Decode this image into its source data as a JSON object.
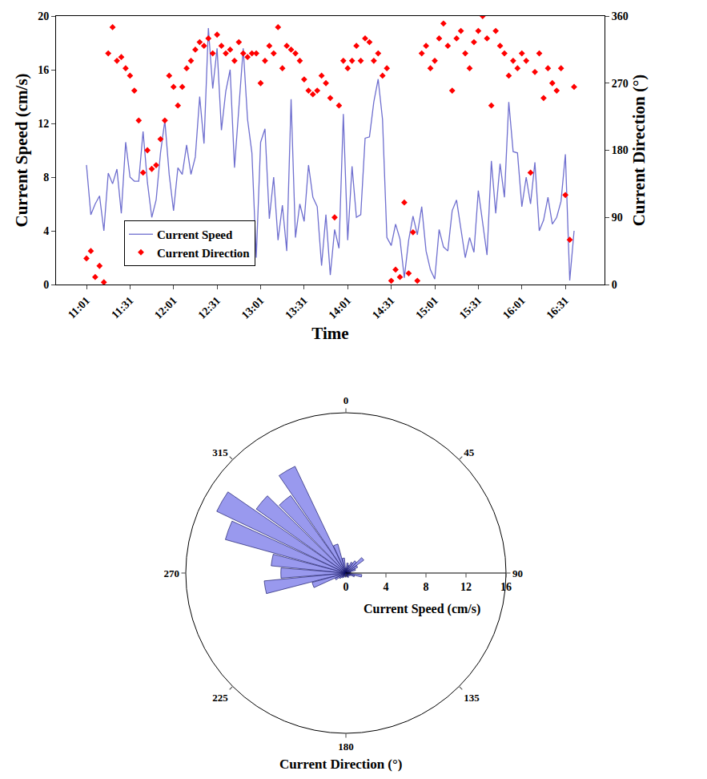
{
  "chart_data": [
    {
      "type": "line",
      "xlabel": "Time",
      "ylabel": "Current Speed (cm/s)",
      "y2label": "Current Direction (°)",
      "categories": [
        "11:01",
        null,
        null,
        null,
        null,
        null,
        null,
        null,
        null,
        null,
        "11:31",
        null,
        null,
        null,
        null,
        null,
        null,
        null,
        null,
        null,
        "12:01",
        null,
        null,
        null,
        null,
        null,
        null,
        null,
        null,
        null,
        "12:31",
        null,
        null,
        null,
        null,
        null,
        null,
        null,
        null,
        null,
        "13:01",
        null,
        null,
        null,
        null,
        null,
        null,
        null,
        null,
        null,
        "13:31",
        null,
        null,
        null,
        null,
        null,
        null,
        null,
        null,
        null,
        "14:01",
        null,
        null,
        null,
        null,
        null,
        null,
        null,
        null,
        null,
        "14:31",
        null,
        null,
        null,
        null,
        null,
        null,
        null,
        null,
        null,
        "15:01",
        null,
        null,
        null,
        null,
        null,
        null,
        null,
        null,
        null,
        "15:31",
        null,
        null,
        null,
        null,
        null,
        null,
        null,
        null,
        null,
        "16:01",
        null,
        null,
        null,
        null,
        null,
        null,
        null,
        null,
        null,
        "16:31",
        null,
        null
      ],
      "series": [
        {
          "name": "Current Speed",
          "type": "line",
          "line_style": "solid",
          "color": "#6f6fcf",
          "values": [
            8.9,
            5.2,
            6.0,
            6.6,
            4.0,
            8.3,
            7.5,
            8.6,
            5.3,
            10.6,
            8.0,
            7.7,
            7.7,
            11.4,
            7.6,
            5.0,
            6.3,
            9.8,
            12.2,
            8.2,
            5.5,
            8.7,
            8.2,
            10.4,
            8.2,
            9.5,
            14.0,
            10.5,
            19.1,
            14.6,
            17.6,
            11.5,
            14.4,
            16.0,
            8.7,
            13.3,
            17.6,
            12.3,
            9.8,
            2.0,
            10.6,
            11.6,
            4.9,
            8.0,
            3.3,
            5.9,
            2.5,
            13.8,
            3.5,
            6.0,
            4.7,
            8.9,
            6.5,
            5.8,
            1.4,
            5.2,
            0.7,
            4.1,
            2.7,
            12.7,
            3.3,
            8.8,
            5.0,
            5.2,
            10.9,
            11.0,
            13.6,
            15.3,
            12.3,
            3.5,
            2.9,
            4.5,
            3.4,
            0.5,
            3.3,
            5.1,
            3.7,
            5.8,
            2.5,
            1.1,
            0.4,
            4.1,
            2.8,
            2.5,
            5.5,
            6.3,
            4.1,
            2.0,
            3.5,
            2.4,
            7.0,
            4.5,
            2.2,
            9.2,
            5.3,
            9.0,
            6.5,
            13.6,
            9.9,
            9.8,
            5.8,
            8.0,
            6.0,
            9.1,
            4.0,
            4.8,
            6.5,
            4.5,
            5.0,
            6.2,
            9.7,
            0.3,
            4.0
          ]
        },
        {
          "name": "Current Direction",
          "type": "scatter",
          "marker": "diamond",
          "axis": "y2",
          "color": "#ff0000",
          "values": [
            35,
            45,
            10,
            25,
            3,
            310,
            345,
            300,
            305,
            290,
            280,
            260,
            220,
            150,
            180,
            155,
            160,
            195,
            220,
            280,
            265,
            240,
            265,
            290,
            300,
            315,
            325,
            320,
            330,
            310,
            335,
            320,
            310,
            315,
            300,
            325,
            310,
            305,
            310,
            310,
            270,
            300,
            320,
            310,
            345,
            290,
            320,
            315,
            310,
            300,
            275,
            260,
            255,
            260,
            280,
            270,
            250,
            90,
            240,
            300,
            290,
            300,
            320,
            300,
            330,
            325,
            300,
            310,
            280,
            290,
            5,
            20,
            10,
            110,
            15,
            70,
            5,
            310,
            320,
            290,
            300,
            330,
            350,
            320,
            260,
            330,
            340,
            310,
            290,
            325,
            340,
            360,
            330,
            240,
            340,
            320,
            310,
            280,
            300,
            290,
            310,
            300,
            150,
            285,
            310,
            250,
            290,
            270,
            260,
            290,
            120,
            60,
            265
          ]
        }
      ],
      "ylim": [
        0,
        20
      ],
      "yticks": [
        0,
        4,
        8,
        12,
        16,
        20
      ],
      "y2lim": [
        0,
        360
      ],
      "y2ticks": [
        0,
        90,
        180,
        270,
        360
      ],
      "legend": "lower left"
    },
    {
      "type": "barpolar",
      "xlabel": "Current Direction (°)",
      "ylabel": "Current Speed (cm/s)",
      "categories": [
        0,
        10,
        20,
        30,
        40,
        50,
        60,
        70,
        80,
        90,
        100,
        110,
        120,
        130,
        140,
        150,
        160,
        170,
        180,
        190,
        200,
        210,
        220,
        230,
        240,
        250,
        260,
        270,
        280,
        290,
        300,
        310,
        320,
        330,
        340,
        350
      ],
      "values": [
        0.5,
        1.0,
        0.8,
        1.2,
        1.5,
        2.2,
        1.3,
        1.0,
        0.5,
        0.4,
        1.6,
        0.9,
        0.5,
        0.4,
        0.3,
        0.5,
        0.4,
        0.3,
        0.3,
        0.4,
        0.3,
        0.5,
        0.6,
        0.8,
        1.2,
        3.5,
        8.2,
        6.5,
        7.5,
        12.5,
        14.3,
        11.0,
        9.5,
        11.8,
        3.0,
        1.5
      ],
      "color": "#9999ee",
      "xticks": [
        0,
        45,
        90,
        135,
        180,
        225,
        270,
        315
      ],
      "ylim": [
        0,
        16
      ],
      "yticks": [
        0,
        4,
        8,
        12,
        16
      ]
    }
  ]
}
